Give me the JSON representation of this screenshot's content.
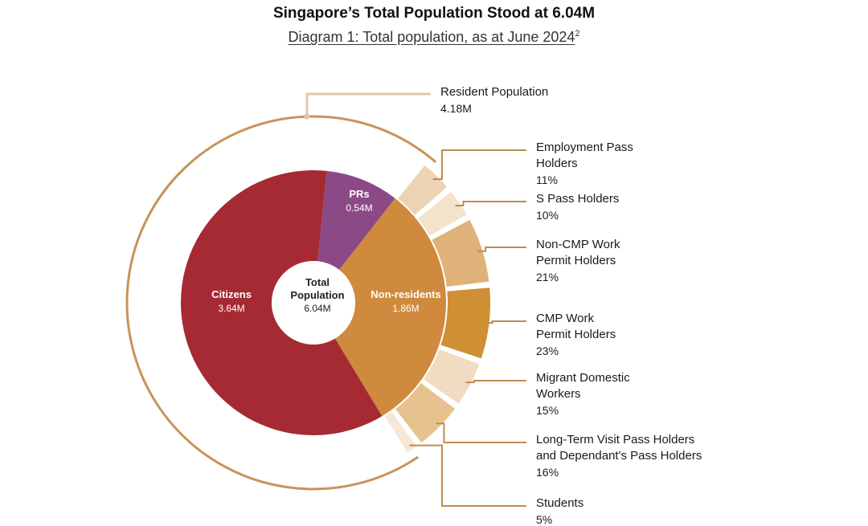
{
  "header": {
    "title": "Singapore’s Total Population Stood at 6.04M",
    "subtitle": "Diagram 1: Total population, as at June 2024",
    "footnote_mark": "2"
  },
  "chart_data": {
    "type": "pie",
    "variant": "nested-donut",
    "center": {
      "label": "Total Population",
      "value": "6.04M"
    },
    "inner": [
      {
        "name": "Citizens",
        "value_label": "3.64M",
        "value": 3.64,
        "color": "#a52a33"
      },
      {
        "name": "PRs",
        "value_label": "0.54M",
        "value": 0.54,
        "color": "#8b4a86"
      },
      {
        "name": "Non-residents",
        "value_label": "1.86M",
        "value": 1.86,
        "color": "#cf8a3e"
      }
    ],
    "resident_ring": {
      "name": "Resident Population",
      "value_label": "4.18M",
      "value": 4.18,
      "color": "#c8935a"
    },
    "non_resident_breakdown": [
      {
        "name": "Employment Pass Holders",
        "lines": [
          "Employment Pass",
          "Holders"
        ],
        "pct_label": "11%",
        "pct": 11,
        "color": "#ecd3b4"
      },
      {
        "name": "S Pass Holders",
        "lines": [
          "S Pass Holders"
        ],
        "pct_label": "10%",
        "pct": 10,
        "color": "#f3e3cd"
      },
      {
        "name": "Non-CMP Work Permit Holders",
        "lines": [
          "Non-CMP Work",
          "Permit Holders"
        ],
        "pct_label": "21%",
        "pct": 21,
        "color": "#dfb27a"
      },
      {
        "name": "CMP Work Permit Holders",
        "lines": [
          "CMP Work",
          "Permit Holders"
        ],
        "pct_label": "23%",
        "pct": 23,
        "color": "#cf8f33"
      },
      {
        "name": "Migrant Domestic Workers",
        "lines": [
          "Migrant Domestic",
          "Workers"
        ],
        "pct_label": "15%",
        "pct": 15,
        "color": "#f0dcc0"
      },
      {
        "name": "Long-Term Visit Pass Holders and Dependant's Pass Holders",
        "lines": [
          "Long-Term Visit Pass Holders",
          "and Dependant's Pass Holders"
        ],
        "pct_label": "16%",
        "pct": 16,
        "color": "#e6c28f"
      },
      {
        "name": "Students",
        "lines": [
          "Students"
        ],
        "pct_label": "5%",
        "pct": 5,
        "color": "#f5e8d6"
      }
    ],
    "leader_color": "#c08b52"
  }
}
